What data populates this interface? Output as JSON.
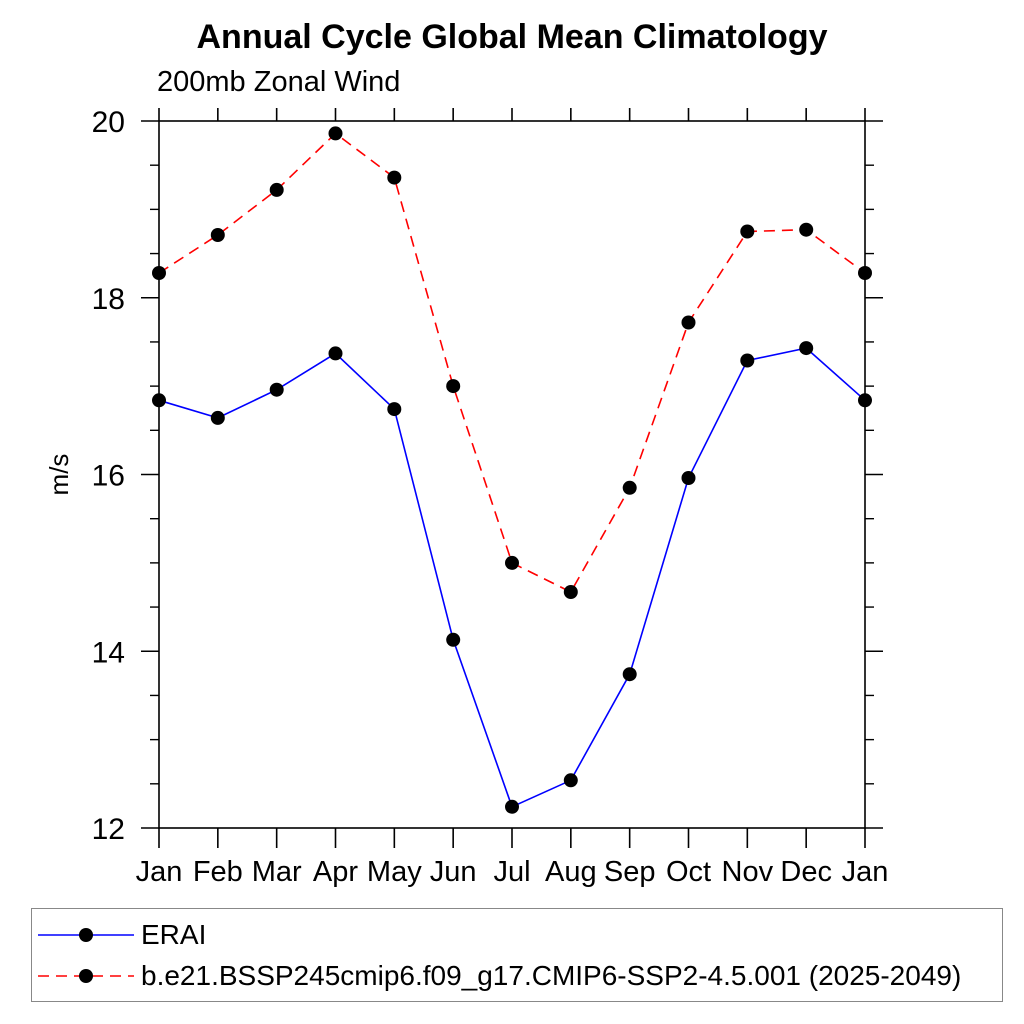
{
  "chart_data": {
    "type": "line",
    "title": "Annual Cycle Global Mean Climatology",
    "subtitle": "200mb Zonal Wind",
    "ylabel": "m/s",
    "xlabel": "",
    "categories": [
      "Jan",
      "Feb",
      "Mar",
      "Apr",
      "May",
      "Jun",
      "Jul",
      "Aug",
      "Sep",
      "Oct",
      "Nov",
      "Dec",
      "Jan"
    ],
    "ylim": [
      12,
      20
    ],
    "ytick_major": [
      12,
      14,
      16,
      18,
      20
    ],
    "ytick_minor_step": 0.5,
    "grid": false,
    "legend_position": "bottom",
    "marker": "filled-circle",
    "marker_color": "#000000",
    "series": [
      {
        "name": "ERAI",
        "color": "#0000ff",
        "line_style": "solid",
        "values": [
          16.84,
          16.64,
          16.96,
          17.37,
          16.74,
          14.13,
          12.24,
          12.54,
          13.74,
          15.96,
          17.29,
          17.43,
          16.84
        ]
      },
      {
        "name": "b.e21.BSSP245cmip6.f09_g17.CMIP6-SSP2-4.5.001 (2025-2049)",
        "color": "#ff0000",
        "line_style": "dashed",
        "values": [
          18.28,
          18.71,
          19.22,
          19.86,
          19.36,
          17.0,
          15.0,
          14.67,
          15.85,
          17.72,
          18.75,
          18.77,
          18.28
        ]
      }
    ]
  }
}
